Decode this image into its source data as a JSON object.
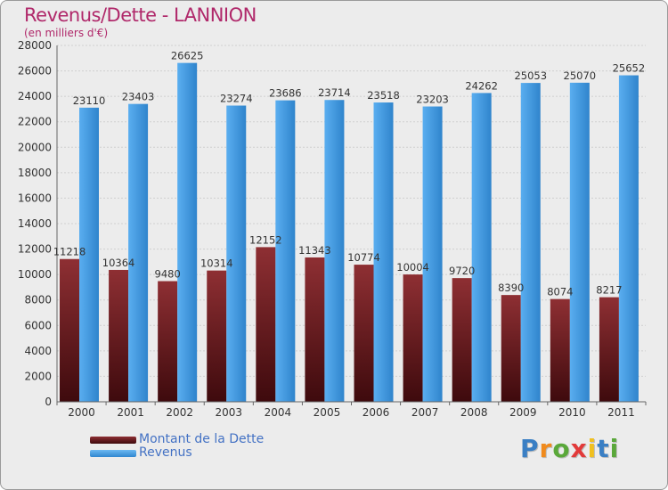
{
  "header": {
    "title": "Revenus/Dette - LANNION",
    "subtitle": "(en milliers d'€)"
  },
  "colors": {
    "debt": "#6b1a1f",
    "debt_light": "#8e2f33",
    "revenue": "#4a9fe3",
    "revenue_light": "#62b1ef",
    "grid": "#cfcfcf",
    "title": "#b0286a",
    "legend_text": "#4472c4"
  },
  "chart_data": {
    "type": "bar",
    "title": "Revenus/Dette - LANNION",
    "subtitle": "(en milliers d'€)",
    "xlabel": "",
    "ylabel": "",
    "ylim": [
      0,
      28000
    ],
    "yticks": [
      0,
      2000,
      4000,
      6000,
      8000,
      10000,
      12000,
      14000,
      16000,
      18000,
      20000,
      22000,
      24000,
      26000,
      28000
    ],
    "grid": true,
    "categories": [
      "2000",
      "2001",
      "2002",
      "2003",
      "2004",
      "2005",
      "2006",
      "2007",
      "2008",
      "2009",
      "2010",
      "2011"
    ],
    "series": [
      {
        "name": "Montant de la Dette",
        "values": [
          11218,
          10364,
          9480,
          10314,
          12152,
          11343,
          10774,
          10004,
          9720,
          8390,
          8074,
          8217
        ],
        "labels": [
          "11218",
          "10364",
          "9480",
          "10314",
          "12152",
          "11343",
          "10774",
          "10004",
          "9720",
          "8390",
          "8074",
          "8217"
        ]
      },
      {
        "name": "Revenus",
        "values": [
          23110,
          23403,
          26625,
          23274,
          23686,
          23714,
          23518,
          23203,
          24262,
          25053,
          25070,
          25652
        ],
        "labels": [
          "23110",
          "23403",
          "26625",
          "23274",
          "23686",
          "23714",
          "23518",
          "23203",
          "24262",
          "25053",
          "25070",
          "25652"
        ]
      }
    ],
    "legend": "bottom-left"
  },
  "legend": {
    "items": [
      {
        "label": "Montant de la Dette",
        "color": "#6b1a1f"
      },
      {
        "label": "Revenus",
        "color": "#4a9fe3"
      }
    ]
  },
  "logo": {
    "letters": [
      "P",
      "r",
      "o",
      "x",
      "i",
      "t",
      "i"
    ],
    "colors": [
      "#3a7fc4",
      "#f08a1c",
      "#5aa83a",
      "#e23a3a",
      "#f0c020",
      "#3a7fc4",
      "#5aa83a"
    ]
  }
}
